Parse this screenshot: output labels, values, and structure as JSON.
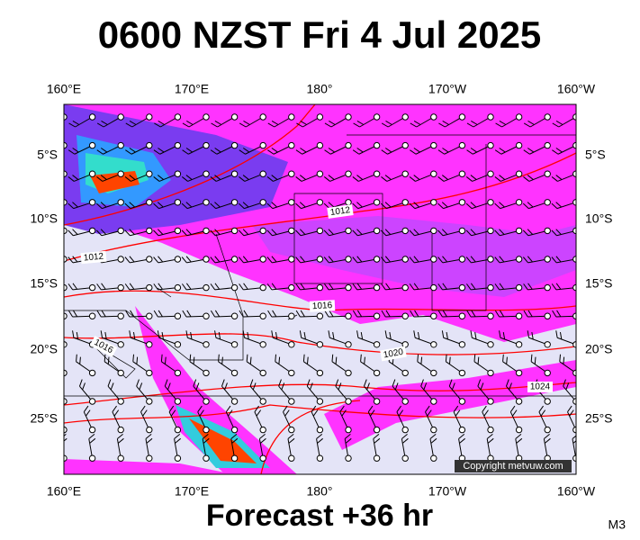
{
  "header": {
    "title": "0600 NZST Fri 4 Jul 2025"
  },
  "map": {
    "lon_labels": [
      "160°E",
      "170°E",
      "180°",
      "170°W",
      "160°W"
    ],
    "lat_labels": [
      "5°S",
      "10°S",
      "15°S",
      "20°S",
      "25°S"
    ],
    "isobar_labels": [
      "1012",
      "1012",
      "1016",
      "1016",
      "1020",
      "1024"
    ],
    "copyright": "Copyright metvuw.com"
  },
  "footer": {
    "text": "Forecast +36 hr",
    "code": "M3"
  }
}
